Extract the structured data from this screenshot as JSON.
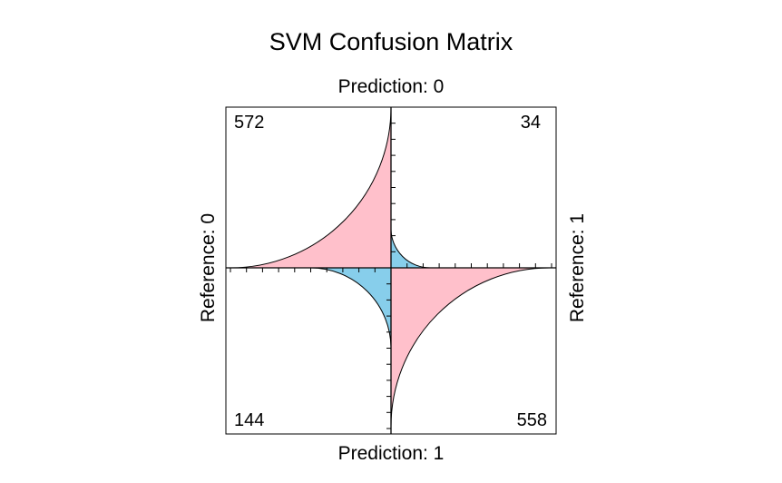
{
  "chart_data": {
    "type": "fourfold",
    "title": "SVM Confusion Matrix",
    "top_label": "Prediction: 0",
    "bottom_label": "Prediction: 1",
    "left_label": "Reference: 0",
    "right_label": "Reference: 1",
    "cells": [
      {
        "prediction": "0",
        "reference": "0",
        "count": 572,
        "color": "#FFC0CB"
      },
      {
        "prediction": "0",
        "reference": "1",
        "count": 34,
        "color": "#87CEEB"
      },
      {
        "prediction": "1",
        "reference": "0",
        "count": 144,
        "color": "#87CEEB"
      },
      {
        "prediction": "1",
        "reference": "1",
        "count": 558,
        "color": "#FFC0CB"
      }
    ]
  }
}
